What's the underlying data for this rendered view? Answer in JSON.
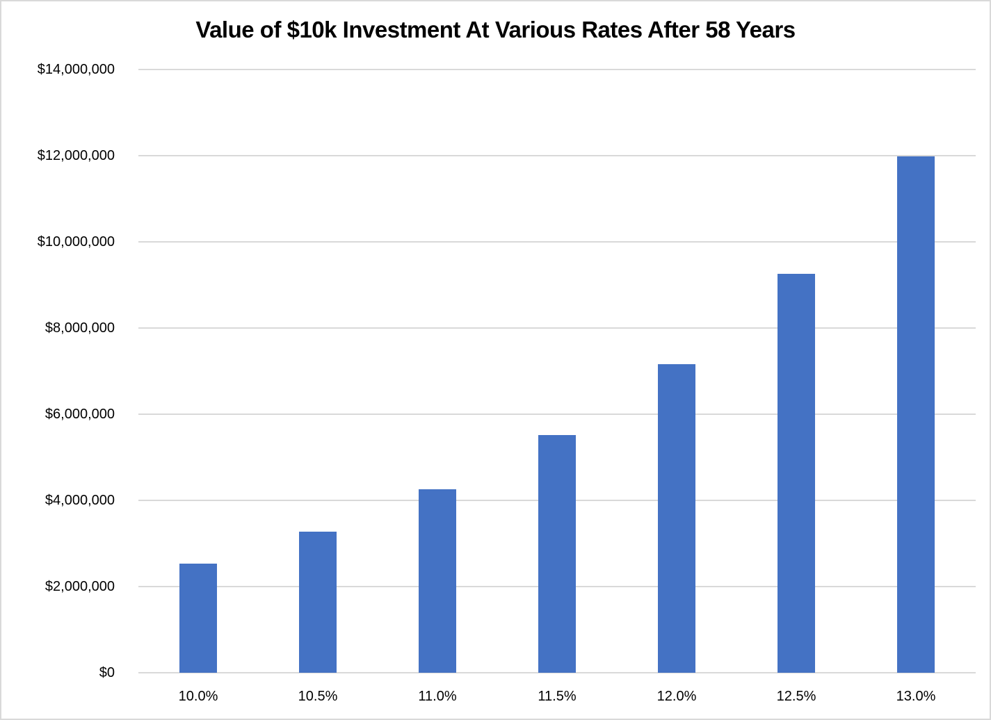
{
  "chart_data": {
    "type": "bar",
    "title": "Value of $10k Investment At Various Rates After 58 Years",
    "categories": [
      "10.0%",
      "10.5%",
      "11.0%",
      "11.5%",
      "12.0%",
      "12.5%",
      "13.0%"
    ],
    "values": [
      2526335,
      3271590,
      4253306,
      5520653,
      7155817,
      9264344,
      11982563
    ],
    "xlabel": "",
    "ylabel": "",
    "ylim": [
      0,
      14000000
    ],
    "ytick_interval": 2000000,
    "ytick_labels": [
      "$0",
      "$2,000,000",
      "$4,000,000",
      "$6,000,000",
      "$8,000,000",
      "$10,000,000",
      "$12,000,000",
      "$14,000,000"
    ],
    "grid": true,
    "legend": false,
    "bar_color": "#4472C4",
    "gridline_color": "#D9D9D9",
    "axis_color": "#D9D9D9",
    "text_color": "#000000",
    "frame_border_color": "#D9D9D9",
    "background_color": "#FFFFFF"
  }
}
